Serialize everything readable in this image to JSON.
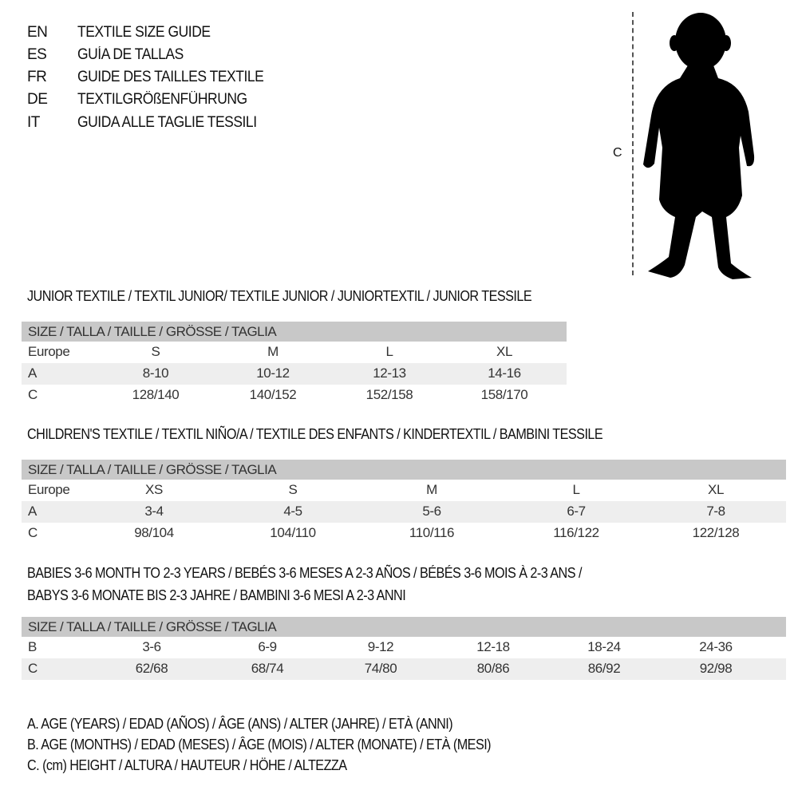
{
  "header": {
    "rows": [
      {
        "code": "EN",
        "title": "TEXTILE SIZE GUIDE"
      },
      {
        "code": "ES",
        "title": "GUÍA DE TALLAS"
      },
      {
        "code": "FR",
        "title": "GUIDE DES TAILLES TEXTILE"
      },
      {
        "code": "DE",
        "title": "TEXTILGRÖßENFÜHRUNG"
      },
      {
        "code": "IT",
        "title": "GUIDA ALLE TAGLIE TESSILI"
      }
    ]
  },
  "figure": {
    "measure_label": "C",
    "icon": "child-silhouette-icon"
  },
  "junior": {
    "heading": "JUNIOR TEXTILE / TEXTIL JUNIOR/ TEXTILE JUNIOR / JUNIORTEXTIL / JUNIOR TESSILE",
    "size_header": "SIZE / TALLA / TAILLE / GRÖSSE / TAGLIA",
    "rows": [
      {
        "label": "Europe",
        "cells": [
          "S",
          "M",
          "L",
          "XL"
        ]
      },
      {
        "label": "A",
        "cells": [
          "8-10",
          "10-12",
          "12-13",
          "14-16"
        ]
      },
      {
        "label": "C",
        "cells": [
          "128/140",
          "140/152",
          "152/158",
          "158/170"
        ]
      }
    ]
  },
  "children": {
    "heading": "CHILDREN'S TEXTILE / TEXTIL NIÑO/A / TEXTILE DES ENFANTS / KINDERTEXTIL / BAMBINI TESSILE",
    "size_header": "SIZE / TALLA / TAILLE / GRÖSSE / TAGLIA",
    "rows": [
      {
        "label": "Europe",
        "cells": [
          "XS",
          "S",
          "M",
          "L",
          "XL"
        ]
      },
      {
        "label": "A",
        "cells": [
          "3-4",
          "4-5",
          "5-6",
          "6-7",
          "7-8"
        ]
      },
      {
        "label": "C",
        "cells": [
          "98/104",
          "104/110",
          "110/116",
          "116/122",
          "122/128"
        ]
      }
    ]
  },
  "babies": {
    "heading_1": "BABIES 3-6 MONTH TO 2-3 YEARS / BEBÉS 3-6 MESES A 2-3 AÑOS / BÉBÉS 3-6 MOIS À 2-3 ANS /",
    "heading_2": "BABYS 3-6 MONATE BIS 2-3 JAHRE / BAMBINI 3-6 MESI A 2-3 ANNI",
    "size_header": "SIZE / TALLA / TAILLE / GRÖSSE / TAGLIA",
    "rows": [
      {
        "label": "B",
        "cells": [
          "3-6",
          "6-9",
          "9-12",
          "12-18",
          "18-24",
          "24-36"
        ]
      },
      {
        "label": "C",
        "cells": [
          "62/68",
          "68/74",
          "74/80",
          "80/86",
          "86/92",
          "92/98"
        ]
      }
    ]
  },
  "legend": [
    "A. AGE (YEARS) / EDAD (AÑOS) / ÂGE (ANS) / ALTER (JAHRE) / ETÀ (ANNI)",
    "B. AGE (MONTHS) / EDAD (MESES) / ÂGE (MOIS) / ALTER (MONATE) / ETÀ (MESI)",
    "C. (cm) HEIGHT / ALTURA / HAUTEUR / HÖHE / ALTEZZA"
  ]
}
